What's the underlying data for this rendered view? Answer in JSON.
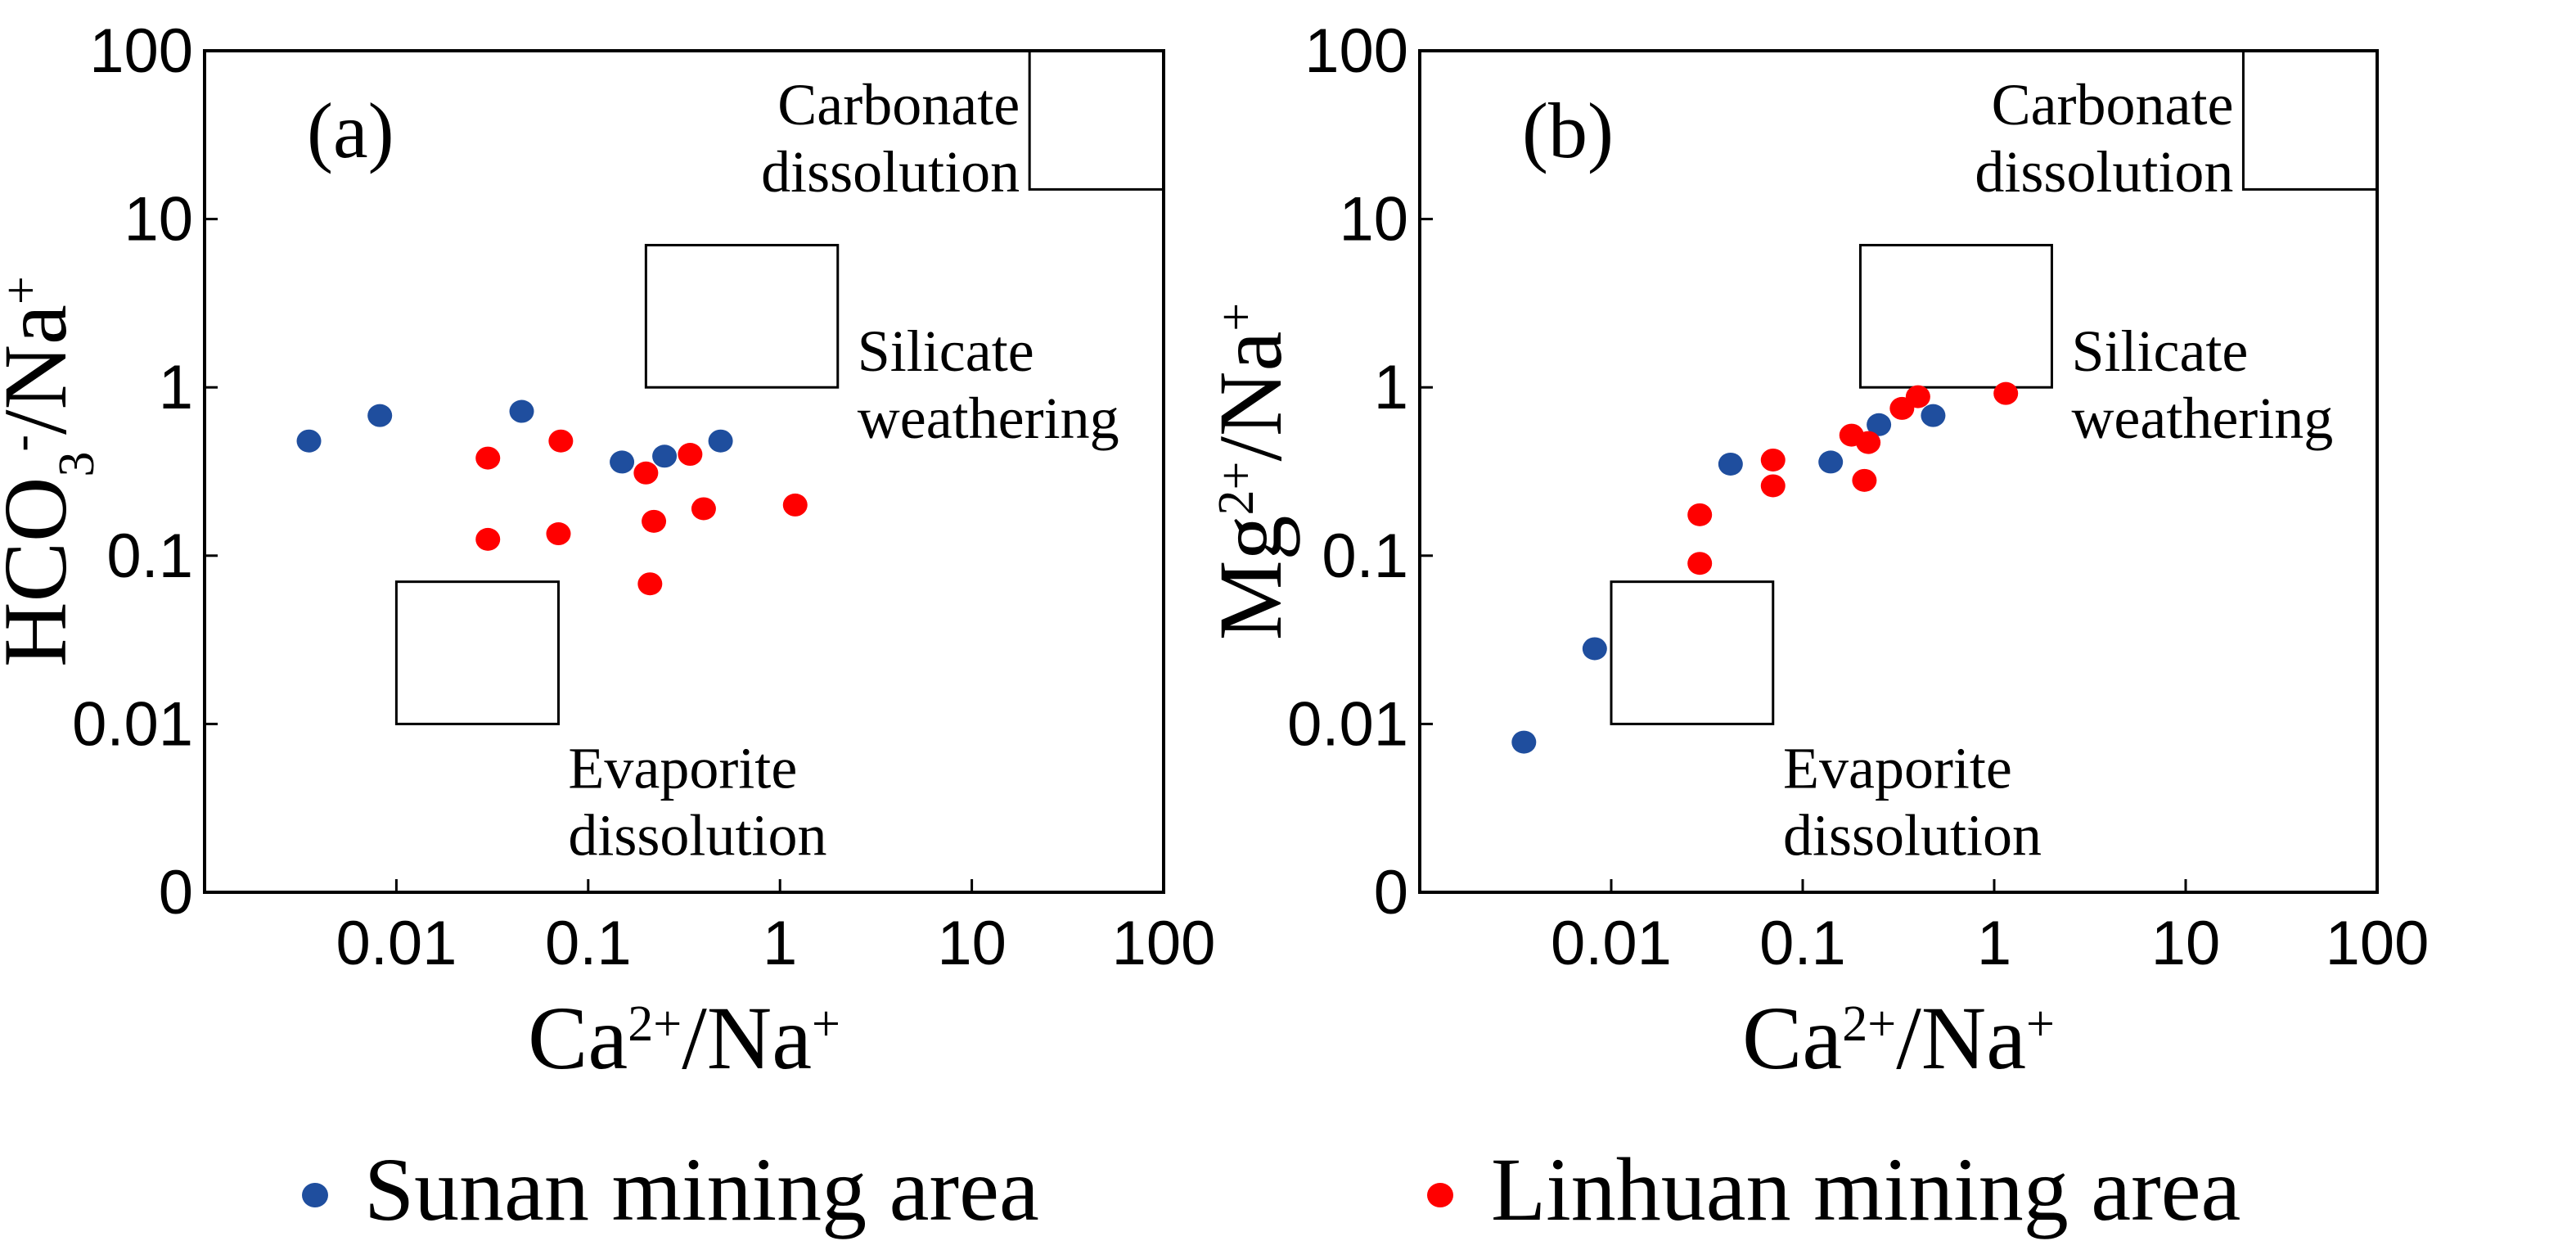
{
  "chart_data": [
    {
      "type": "scatter",
      "panel_label": "(a)",
      "x_scale": "log",
      "y_scale": "log",
      "xlim": [
        0.001,
        100
      ],
      "ylim": [
        0.001,
        100
      ],
      "x_ticks": [
        {
          "value": 0.01,
          "label": "0.01"
        },
        {
          "value": 0.1,
          "label": "0.1"
        },
        {
          "value": 1,
          "label": "1"
        },
        {
          "value": 10,
          "label": "10"
        },
        {
          "value": 100,
          "label": "100"
        }
      ],
      "y_ticks": [
        {
          "value": 0.001,
          "label": "0"
        },
        {
          "value": 0.01,
          "label": "0.01"
        },
        {
          "value": 0.1,
          "label": "0.1"
        },
        {
          "value": 1,
          "label": "1"
        },
        {
          "value": 10,
          "label": "10"
        },
        {
          "value": 100,
          "label": "100"
        }
      ],
      "xlabel": {
        "base1": "Ca",
        "sup1": "2+",
        "mid": "/Na",
        "sup2": "+"
      },
      "ylabel": {
        "base1": "HCO",
        "sub": "3",
        "sup1": "-",
        "mid": "/Na",
        "sup2": "+"
      },
      "regions": [
        {
          "name": "Carbonate dissolution",
          "lines": [
            "Carbonate",
            "dissolution"
          ],
          "x": [
            20,
            100
          ],
          "y": [
            15,
            100
          ],
          "label_anchor": "left"
        },
        {
          "name": "Silicate weathering",
          "lines": [
            "Silicate",
            "weathering"
          ],
          "x": [
            0.2,
            2
          ],
          "y": [
            1,
            7
          ],
          "label_anchor": "right"
        },
        {
          "name": "Evaporite dissolution",
          "lines": [
            "Evaporite",
            "dissolution"
          ],
          "x": [
            0.01,
            0.07
          ],
          "y": [
            0.01,
            0.07
          ],
          "label_anchor": "below"
        }
      ],
      "series": [
        {
          "name": "Sunan mining area",
          "color": "#1f4e9e",
          "x": [
            0.0035,
            0.0082,
            0.045,
            0.15,
            0.25,
            0.49
          ],
          "y": [
            0.48,
            0.68,
            0.72,
            0.36,
            0.39,
            0.48
          ]
        },
        {
          "name": "Linhuan mining area",
          "color": "#ff0000",
          "x": [
            0.03,
            0.03,
            0.072,
            0.07,
            0.2,
            0.21,
            0.22,
            0.34,
            0.4,
            1.2
          ],
          "y": [
            0.38,
            0.125,
            0.48,
            0.135,
            0.31,
            0.068,
            0.16,
            0.4,
            0.19,
            0.2
          ]
        }
      ]
    },
    {
      "type": "scatter",
      "panel_label": "(b)",
      "x_scale": "log",
      "y_scale": "log",
      "xlim": [
        0.001,
        100
      ],
      "ylim": [
        0.001,
        100
      ],
      "x_ticks": [
        {
          "value": 0.01,
          "label": "0.01"
        },
        {
          "value": 0.1,
          "label": "0.1"
        },
        {
          "value": 1,
          "label": "1"
        },
        {
          "value": 10,
          "label": "10"
        },
        {
          "value": 100,
          "label": "100"
        }
      ],
      "y_ticks": [
        {
          "value": 0.001,
          "label": "0"
        },
        {
          "value": 0.01,
          "label": "0.01"
        },
        {
          "value": 0.1,
          "label": "0.1"
        },
        {
          "value": 1,
          "label": "1"
        },
        {
          "value": 10,
          "label": "10"
        },
        {
          "value": 100,
          "label": "100"
        }
      ],
      "xlabel": {
        "base1": "Ca",
        "sup1": "2+",
        "mid": "/Na",
        "sup2": "+"
      },
      "ylabel": {
        "base1": "Mg",
        "sub": "",
        "sup1": "2+",
        "mid": "/Na",
        "sup2": "+"
      },
      "regions": [
        {
          "name": "Carbonate dissolution",
          "lines": [
            "Carbonate",
            "dissolution"
          ],
          "x": [
            20,
            100
          ],
          "y": [
            15,
            100
          ],
          "label_anchor": "left"
        },
        {
          "name": "Silicate weathering",
          "lines": [
            "Silicate",
            "weathering"
          ],
          "x": [
            0.2,
            2
          ],
          "y": [
            1,
            7
          ],
          "label_anchor": "right"
        },
        {
          "name": "Evaporite dissolution",
          "lines": [
            "Evaporite",
            "dissolution"
          ],
          "x": [
            0.01,
            0.07
          ],
          "y": [
            0.01,
            0.07
          ],
          "label_anchor": "below"
        }
      ],
      "series": [
        {
          "name": "Sunan mining area",
          "color": "#1f4e9e",
          "x": [
            0.0035,
            0.0082,
            0.042,
            0.14,
            0.25,
            0.48
          ],
          "y": [
            0.0078,
            0.028,
            0.35,
            0.36,
            0.6,
            0.68
          ]
        },
        {
          "name": "Linhuan mining area",
          "color": "#ff0000",
          "x": [
            0.029,
            0.029,
            0.07,
            0.07,
            0.18,
            0.21,
            0.22,
            0.33,
            0.4,
            1.15
          ],
          "y": [
            0.175,
            0.09,
            0.37,
            0.26,
            0.52,
            0.28,
            0.47,
            0.75,
            0.88,
            0.92
          ]
        }
      ]
    }
  ],
  "legend": {
    "items": [
      {
        "label": "Sunan mining area",
        "color": "#1f4e9e"
      },
      {
        "label": "Linhuan mining area",
        "color": "#ff0000"
      }
    ]
  }
}
